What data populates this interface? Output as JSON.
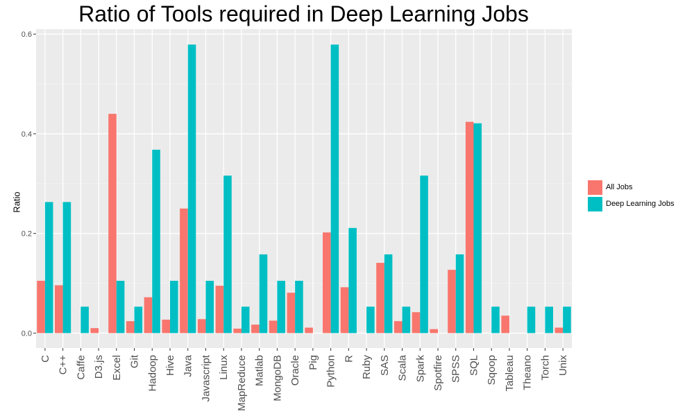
{
  "chart_data": {
    "type": "bar",
    "title": "Ratio of Tools required in Deep Learning Jobs",
    "xlabel": "",
    "ylabel": "Ratio",
    "ylim": [
      -0.03,
      0.61
    ],
    "yticks": [
      "0.0",
      "0.2",
      "0.4",
      "0.6"
    ],
    "ytick_values": [
      0.0,
      0.2,
      0.4,
      0.6
    ],
    "grid": true,
    "legend_position": "right",
    "categories": [
      "C",
      "C++",
      "Caffe",
      "D3.js",
      "Excel",
      "Git",
      "Hadoop",
      "Hive",
      "Java",
      "Javascript",
      "Linux",
      "MapReduce",
      "Matlab",
      "MongoDB",
      "Oracle",
      "Pig",
      "Python",
      "R",
      "Ruby",
      "SAS",
      "Scala",
      "Spark",
      "Spotfire",
      "SPSS",
      "SQL",
      "Sqoop",
      "Tableau",
      "Theano",
      "Torch",
      "Unix"
    ],
    "series": [
      {
        "name": "All Jobs",
        "color": "#f8766d",
        "values": [
          0.105,
          0.096,
          0.0,
          0.01,
          0.44,
          0.024,
          0.072,
          0.027,
          0.25,
          0.028,
          0.095,
          0.009,
          0.017,
          0.025,
          0.081,
          0.011,
          0.202,
          0.092,
          0.0,
          0.141,
          0.024,
          0.042,
          0.008,
          0.127,
          0.424,
          0.0,
          0.035,
          0.0,
          0.0,
          0.011
        ]
      },
      {
        "name": "Deep Learning Jobs",
        "color": "#00bfc4",
        "values": [
          0.263,
          0.263,
          0.053,
          0.0,
          0.105,
          0.053,
          0.368,
          0.105,
          0.579,
          0.105,
          0.316,
          0.053,
          0.158,
          0.105,
          0.105,
          0.0,
          0.579,
          0.211,
          0.053,
          0.158,
          0.053,
          0.316,
          0.0,
          0.158,
          0.421,
          0.053,
          0.0,
          0.053,
          0.053,
          0.053
        ]
      }
    ]
  }
}
